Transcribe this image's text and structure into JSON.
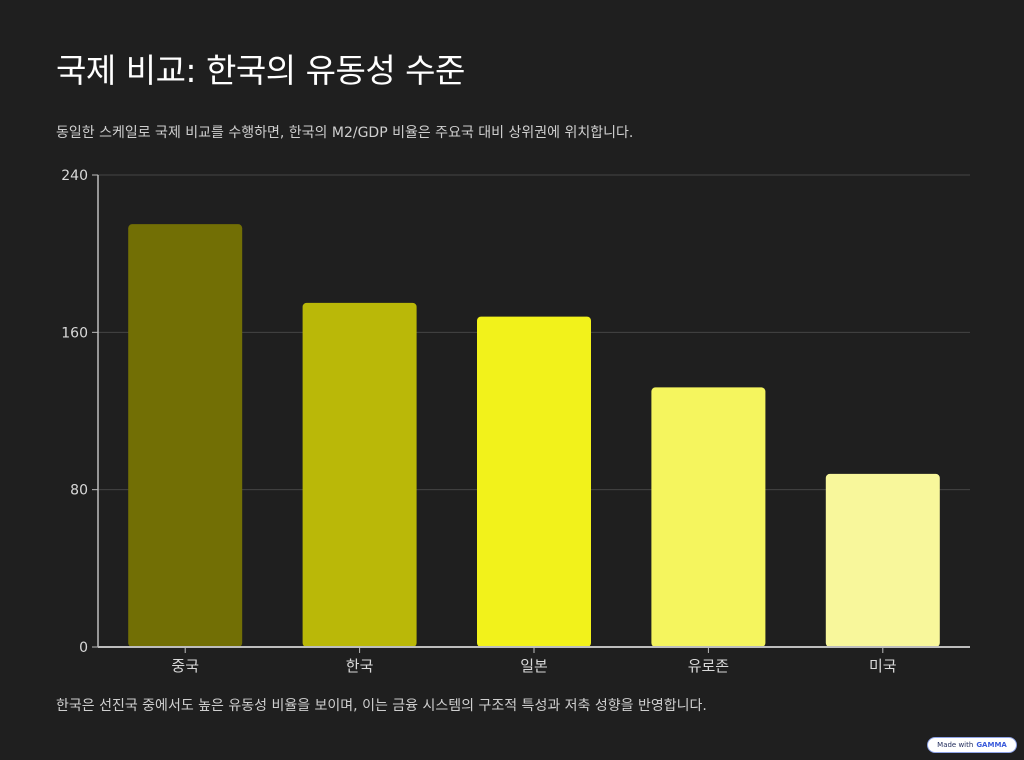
{
  "header": {
    "title": "국제 비교: 한국의 유동성 수준",
    "subtitle": "동일한 스케일로 국제 비교를 수행하면, 한국의 M2/GDP 비율은 주요국 대비 상위권에 위치합니다."
  },
  "footer": {
    "note": "한국은 선진국 중에서도 높은 유동성 비율을 보이며, 이는 금융 시스템의 구조적 특성과 저축 성향을 반영합니다."
  },
  "badge": {
    "made_with": "Made with",
    "brand": "GAMMA"
  },
  "chart_data": {
    "type": "bar",
    "categories": [
      "중국",
      "한국",
      "일본",
      "유로존",
      "미국"
    ],
    "values": [
      215,
      175,
      168,
      132,
      88
    ],
    "colors": [
      "#726f05",
      "#bab808",
      "#f2f21b",
      "#f5f55e",
      "#f8f79b"
    ],
    "ylim": [
      0,
      240
    ],
    "yticks": [
      0,
      80,
      160,
      240
    ],
    "grid": true,
    "xlabel": "",
    "ylabel": ""
  }
}
